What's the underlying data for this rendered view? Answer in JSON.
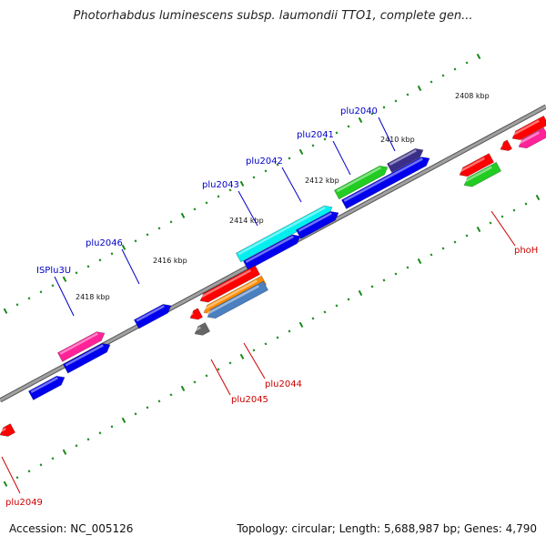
{
  "title": "Photorhabdus luminescens subsp. laumondii TTO1, complete gen...",
  "footer": {
    "accession": "Accession: NC_005126",
    "summary": "Topology: circular; Length: 5,688,987 bp; Genes: 4,790"
  },
  "ticks": [
    "2408 kbp",
    "2410 kbp",
    "2412 kbp",
    "2414 kbp",
    "2416 kbp",
    "2418 kbp"
  ],
  "gene_labels": [
    "plu2040",
    "plu2041",
    "plu2042",
    "plu2043",
    "plu2046",
    "ISPlu3U",
    "phoH",
    "plu2044",
    "plu2045",
    "plu2049"
  ],
  "colors": {
    "backbone": "#808080",
    "tick_dot": "#1a8a1a",
    "label_blue": "#0000c8",
    "label_red": "#cc0000",
    "red": "#ff0000",
    "blue": "#0000ee",
    "cyan": "#00f0f0",
    "green": "#22cc22",
    "magenta": "#ff2299",
    "navy": "#3a2f88",
    "orange": "#ff8c00",
    "steel": "#4a7fc0",
    "gray": "#666666"
  }
}
